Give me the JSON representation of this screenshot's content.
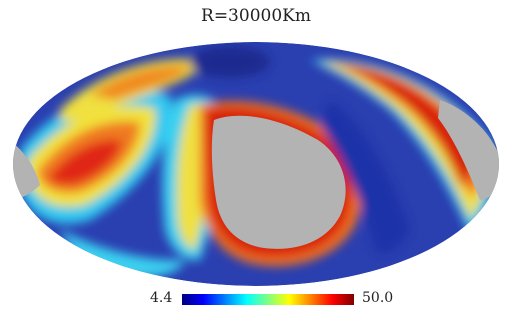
{
  "title": "R=30000Km",
  "projection": "mollweide",
  "colorbar": {
    "min_label": "4.4",
    "max_label": "50.0",
    "min": 4.4,
    "max": 50.0,
    "colormap": "jet"
  },
  "colors": {
    "masked": "#b3b3b3",
    "background": "#ffffff"
  }
}
